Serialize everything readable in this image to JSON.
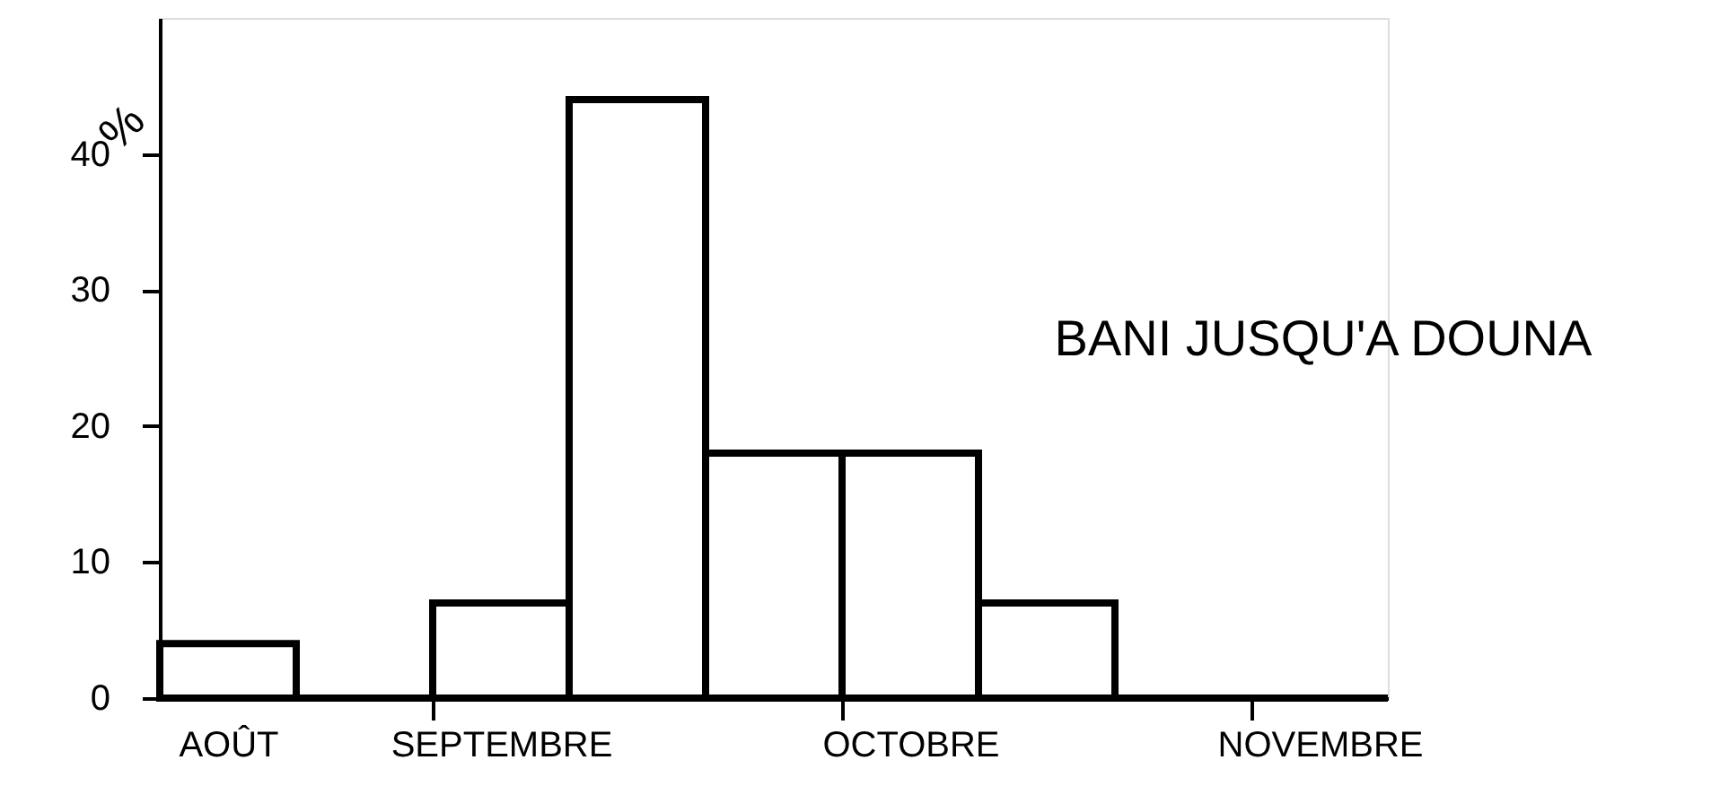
{
  "chart_data": {
    "type": "bar",
    "title": "BANI JUSQU'A DOUNA",
    "ylabel": "%",
    "categories": [
      "AOÛT",
      null,
      "SEPTEMBRE",
      null,
      null,
      "OCTOBRE",
      null,
      null,
      "NOVEMBRE"
    ],
    "values": [
      4,
      0,
      7,
      44,
      18,
      18,
      7,
      0,
      0
    ],
    "color": "#000000",
    "ylim": [
      0,
      50
    ],
    "yticks": [
      0,
      10,
      20,
      30,
      40
    ],
    "grid": false
  }
}
